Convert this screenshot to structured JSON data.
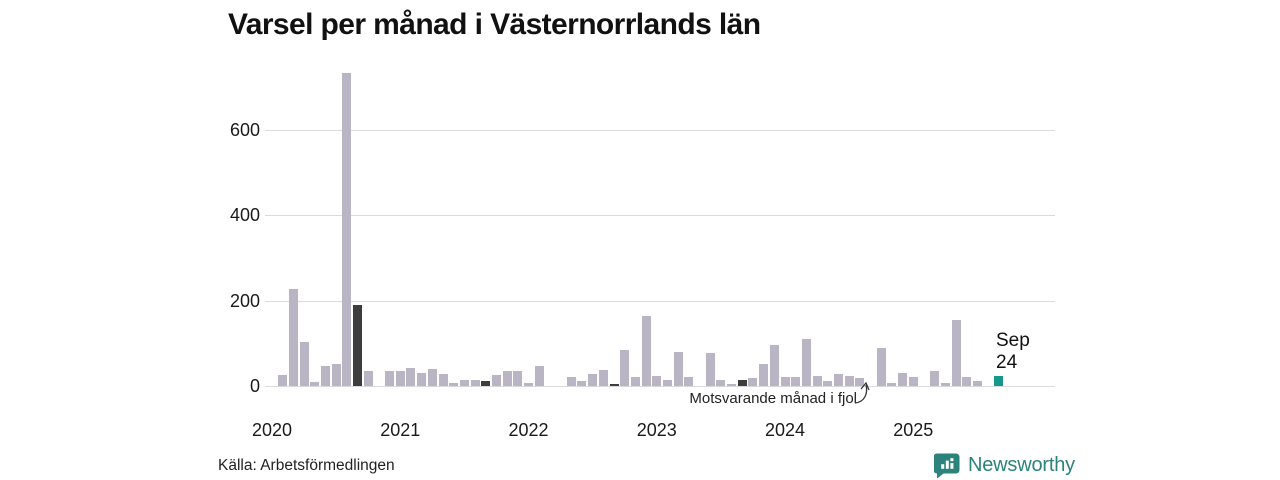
{
  "title": "Varsel per månad i Västernorrlands län",
  "source": "Källa: Arbetsförmedlingen",
  "branding": {
    "name": "Newsworthy",
    "icon": "bar-chart-speech-bubble-icon",
    "color": "#2b837c"
  },
  "annotations": {
    "comparison_label": "Motsvarande månad i fjol",
    "latest_label_line1": "Sep",
    "latest_label_line2": "24"
  },
  "colors": {
    "bar": "#b9b5c4",
    "highlight_dark": "#3d3d3d",
    "highlight_latest": "#16988a",
    "gridline": "#dadade",
    "text": "#1a1a1a"
  },
  "chart_data": {
    "type": "bar",
    "title": "Varsel per månad i Västernorrlands län",
    "xlabel": "",
    "ylabel": "",
    "ylim": [
      0,
      750
    ],
    "yticks": [
      0,
      200,
      400,
      600
    ],
    "xticks": [
      "2020",
      "2021",
      "2022",
      "2023",
      "2024",
      "2025"
    ],
    "grid": true,
    "legend": false,
    "highlight_rule": "september-each-year-dark, latest-month-teal",
    "months": [
      {
        "month": "2020-01",
        "value": 0
      },
      {
        "month": "2020-02",
        "value": 25
      },
      {
        "month": "2020-03",
        "value": 228
      },
      {
        "month": "2020-04",
        "value": 103
      },
      {
        "month": "2020-05",
        "value": 10
      },
      {
        "month": "2020-06",
        "value": 47
      },
      {
        "month": "2020-07",
        "value": 52
      },
      {
        "month": "2020-08",
        "value": 735
      },
      {
        "month": "2020-09",
        "value": 190,
        "highlight": "dark"
      },
      {
        "month": "2020-10",
        "value": 35
      },
      {
        "month": "2020-11",
        "value": 0
      },
      {
        "month": "2020-12",
        "value": 35
      },
      {
        "month": "2021-01",
        "value": 35
      },
      {
        "month": "2021-02",
        "value": 42
      },
      {
        "month": "2021-03",
        "value": 30
      },
      {
        "month": "2021-04",
        "value": 40
      },
      {
        "month": "2021-05",
        "value": 27
      },
      {
        "month": "2021-06",
        "value": 7
      },
      {
        "month": "2021-07",
        "value": 15
      },
      {
        "month": "2021-08",
        "value": 14
      },
      {
        "month": "2021-09",
        "value": 12,
        "highlight": "dark"
      },
      {
        "month": "2021-10",
        "value": 25
      },
      {
        "month": "2021-11",
        "value": 34
      },
      {
        "month": "2021-12",
        "value": 36
      },
      {
        "month": "2022-01",
        "value": 8
      },
      {
        "month": "2022-02",
        "value": 48
      },
      {
        "month": "2022-03",
        "value": 0
      },
      {
        "month": "2022-04",
        "value": 0
      },
      {
        "month": "2022-05",
        "value": 22
      },
      {
        "month": "2022-06",
        "value": 12
      },
      {
        "month": "2022-07",
        "value": 28
      },
      {
        "month": "2022-08",
        "value": 38
      },
      {
        "month": "2022-09",
        "value": 5,
        "highlight": "dark"
      },
      {
        "month": "2022-10",
        "value": 85
      },
      {
        "month": "2022-11",
        "value": 20
      },
      {
        "month": "2022-12",
        "value": 165
      },
      {
        "month": "2023-01",
        "value": 23
      },
      {
        "month": "2023-02",
        "value": 15
      },
      {
        "month": "2023-03",
        "value": 80
      },
      {
        "month": "2023-04",
        "value": 20
      },
      {
        "month": "2023-05",
        "value": 0
      },
      {
        "month": "2023-06",
        "value": 78
      },
      {
        "month": "2023-07",
        "value": 13
      },
      {
        "month": "2023-08",
        "value": 5
      },
      {
        "month": "2023-09",
        "value": 15,
        "highlight": "dark"
      },
      {
        "month": "2023-10",
        "value": 18
      },
      {
        "month": "2023-11",
        "value": 52
      },
      {
        "month": "2023-12",
        "value": 95
      },
      {
        "month": "2024-01",
        "value": 20
      },
      {
        "month": "2024-02",
        "value": 20
      },
      {
        "month": "2024-03",
        "value": 110
      },
      {
        "month": "2024-04",
        "value": 23
      },
      {
        "month": "2024-05",
        "value": 12
      },
      {
        "month": "2024-06",
        "value": 27
      },
      {
        "month": "2024-07",
        "value": 23
      },
      {
        "month": "2024-08",
        "value": 19
      },
      {
        "month": "2024-09",
        "value": 0,
        "highlight": "dark"
      },
      {
        "month": "2024-10",
        "value": 90
      },
      {
        "month": "2024-11",
        "value": 8
      },
      {
        "month": "2024-12",
        "value": 30
      },
      {
        "month": "2025-01",
        "value": 22
      },
      {
        "month": "2025-02",
        "value": 0
      },
      {
        "month": "2025-03",
        "value": 35
      },
      {
        "month": "2025-04",
        "value": 8
      },
      {
        "month": "2025-05",
        "value": 155
      },
      {
        "month": "2025-06",
        "value": 22
      },
      {
        "month": "2025-07",
        "value": 12
      },
      {
        "month": "2025-08",
        "value": 0
      },
      {
        "month": "2025-09",
        "value": 24,
        "highlight": "latest"
      }
    ]
  }
}
